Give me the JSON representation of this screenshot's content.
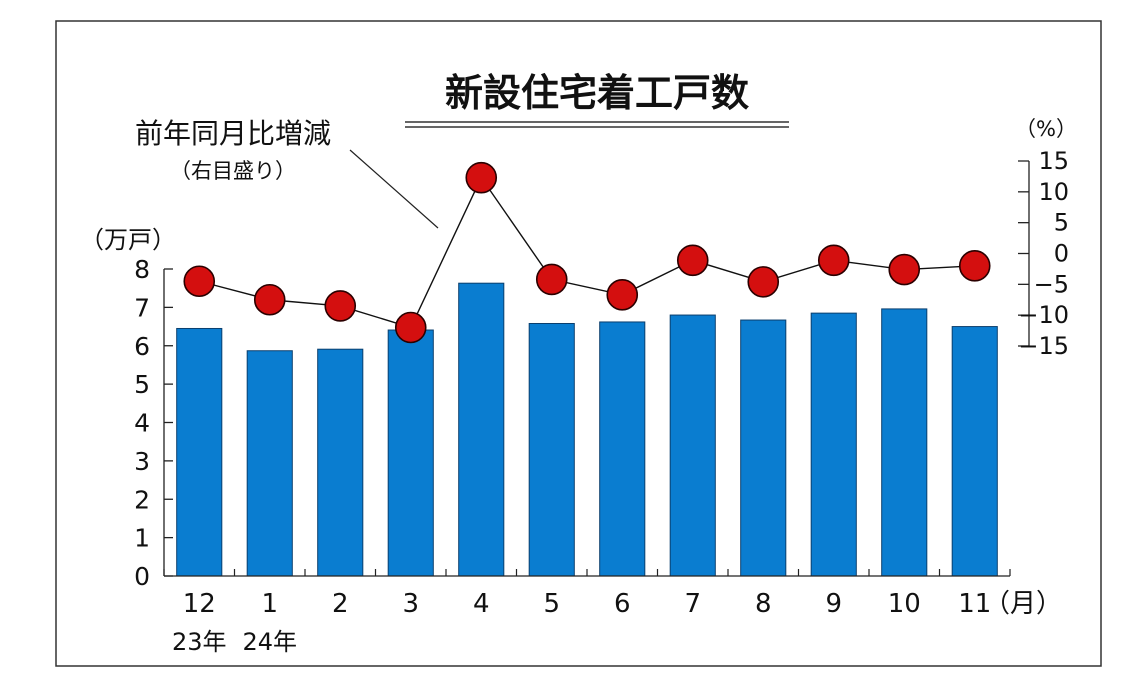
{
  "chart_data": {
    "type": "bar",
    "title": "新設住宅着工戸数",
    "categories": [
      "12",
      "1",
      "2",
      "3",
      "4",
      "5",
      "6",
      "7",
      "8",
      "9",
      "10",
      "11"
    ],
    "x_unit": "（月）",
    "year_labels": [
      {
        "text": "23年",
        "category": "12"
      },
      {
        "text": "24年",
        "category": "1"
      }
    ],
    "left_axis": {
      "unit": "（万戸）",
      "ylim": [
        0,
        8
      ],
      "ticks": [
        "0",
        "1",
        "2",
        "3",
        "4",
        "5",
        "6",
        "7",
        "8"
      ]
    },
    "right_axis": {
      "unit": "（%）",
      "ylim": [
        -15,
        15
      ],
      "ticks": [
        "15",
        "10",
        "5",
        "0",
        "−5",
        "−10",
        "−15"
      ]
    },
    "series": [
      {
        "type": "bar",
        "values": [
          6.45,
          5.87,
          5.91,
          6.41,
          7.63,
          6.58,
          6.62,
          6.8,
          6.67,
          6.85,
          6.96,
          6.5
        ],
        "color": "#0a7dd0",
        "axis": "left"
      },
      {
        "name": "前年同月比増減",
        "note": "（右目盛り）",
        "type": "line",
        "values": [
          -4.5,
          -7.5,
          -8.5,
          -12.0,
          12.3,
          -4.2,
          -6.7,
          -1.1,
          -4.6,
          -1.1,
          -2.6,
          -2.0
        ],
        "color": "#d40f0f",
        "axis": "right"
      }
    ],
    "grid": false,
    "legend": "callout-top-left"
  }
}
